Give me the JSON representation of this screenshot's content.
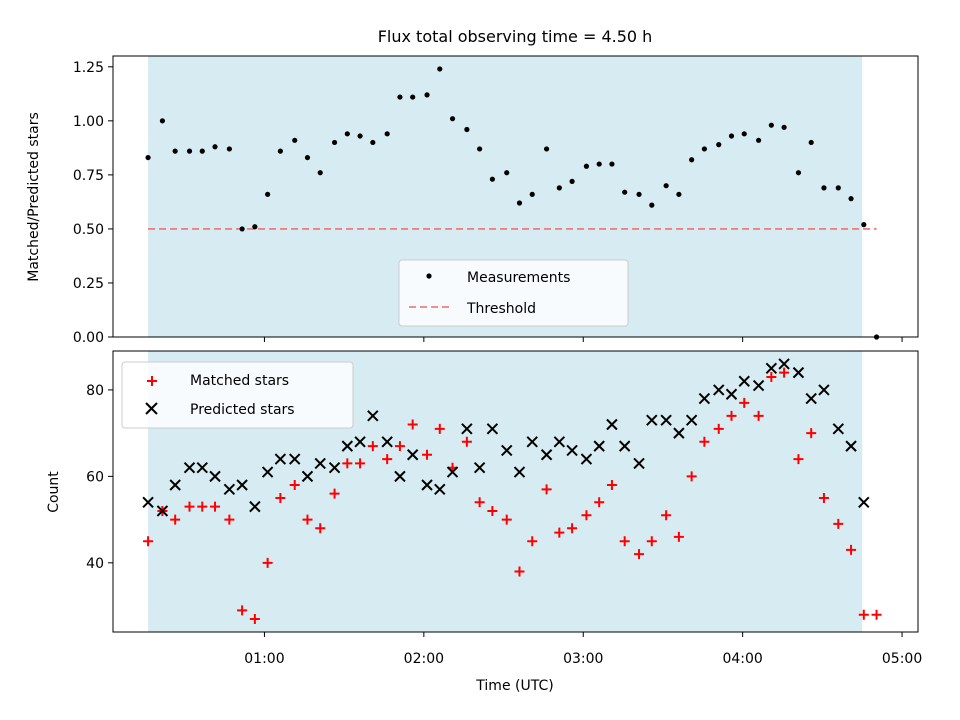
{
  "figure": {
    "title": "Flux total observing time = 4.50 h",
    "shade_color": "#add8e6",
    "x_ticks": [
      "01:00",
      "02:00",
      "03:00",
      "04:00",
      "05:00"
    ]
  },
  "chart_data": [
    {
      "type": "scatter",
      "panel": "top",
      "title": "Flux total observing time = 4.50 h",
      "xlabel": "",
      "ylabel": "Matched/Predicted stars",
      "x_unit": "hours UTC",
      "xlim": [
        0.05,
        5.1
      ],
      "ylim": [
        0.0,
        1.3
      ],
      "y_ticks": [
        "0.00",
        "0.25",
        "0.50",
        "0.75",
        "1.00",
        "1.25"
      ],
      "shaded_interval": [
        0.27,
        4.75
      ],
      "legend": {
        "position": "bottom-center"
      },
      "series": [
        {
          "name": "Measurements",
          "color": "#000000",
          "marker": "dot",
          "x": [
            0.27,
            0.36,
            0.44,
            0.53,
            0.61,
            0.69,
            0.78,
            0.86,
            0.94,
            1.02,
            1.1,
            1.19,
            1.27,
            1.35,
            1.44,
            1.52,
            1.6,
            1.68,
            1.77,
            1.85,
            1.93,
            2.02,
            2.1,
            2.18,
            2.27,
            2.35,
            2.43,
            2.52,
            2.6,
            2.68,
            2.77,
            2.85,
            2.93,
            3.02,
            3.1,
            3.18,
            3.26,
            3.35,
            3.43,
            3.52,
            3.6,
            3.68,
            3.76,
            3.85,
            3.93,
            4.01,
            4.1,
            4.18,
            4.26,
            4.35,
            4.43,
            4.51,
            4.6,
            4.68,
            4.76,
            4.84
          ],
          "y": [
            0.83,
            1.0,
            0.86,
            0.86,
            0.86,
            0.88,
            0.87,
            0.5,
            0.51,
            0.66,
            0.86,
            0.91,
            0.83,
            0.76,
            0.9,
            0.94,
            0.93,
            0.9,
            0.94,
            1.11,
            1.11,
            1.12,
            1.24,
            1.01,
            0.96,
            0.87,
            0.73,
            0.76,
            0.62,
            0.66,
            0.87,
            0.69,
            0.72,
            0.79,
            0.8,
            0.8,
            0.67,
            0.66,
            0.61,
            0.7,
            0.66,
            0.82,
            0.87,
            0.89,
            0.93,
            0.94,
            0.91,
            0.98,
            0.97,
            0.76,
            0.9,
            0.69,
            0.69,
            0.64,
            0.52,
            0.0
          ]
        },
        {
          "name": "Threshold",
          "color": "#f08080",
          "style": "dashed",
          "x": [
            0.27,
            4.84
          ],
          "y": [
            0.5,
            0.5
          ]
        }
      ]
    },
    {
      "type": "scatter",
      "panel": "bottom",
      "xlabel": "Time (UTC)",
      "ylabel": "Count",
      "x_unit": "hours UTC",
      "xlim": [
        0.05,
        5.1
      ],
      "ylim": [
        24,
        89
      ],
      "y_ticks": [
        "40",
        "60",
        "80"
      ],
      "shaded_interval": [
        0.27,
        4.75
      ],
      "legend": {
        "position": "top-left"
      },
      "series": [
        {
          "name": "Matched stars",
          "color": "#ff0000",
          "marker": "plus",
          "x": [
            0.27,
            0.36,
            0.44,
            0.53,
            0.61,
            0.69,
            0.78,
            0.86,
            0.94,
            1.02,
            1.1,
            1.19,
            1.27,
            1.35,
            1.44,
            1.52,
            1.6,
            1.68,
            1.77,
            1.85,
            1.93,
            2.02,
            2.1,
            2.18,
            2.27,
            2.35,
            2.43,
            2.52,
            2.6,
            2.68,
            2.77,
            2.85,
            2.93,
            3.02,
            3.1,
            3.18,
            3.26,
            3.35,
            3.43,
            3.52,
            3.6,
            3.68,
            3.76,
            3.85,
            3.93,
            4.01,
            4.1,
            4.18,
            4.26,
            4.35,
            4.43,
            4.51,
            4.6,
            4.68,
            4.76,
            4.84
          ],
          "y": [
            45,
            52,
            50,
            53,
            53,
            53,
            50,
            29,
            27,
            40,
            55,
            58,
            50,
            48,
            56,
            63,
            63,
            67,
            64,
            67,
            72,
            65,
            71,
            62,
            68,
            54,
            52,
            50,
            38,
            45,
            57,
            47,
            48,
            51,
            54,
            58,
            45,
            42,
            45,
            51,
            46,
            60,
            68,
            71,
            74,
            77,
            74,
            83,
            84,
            64,
            70,
            55,
            49,
            43,
            28,
            28
          ]
        },
        {
          "name": "Predicted stars",
          "color": "#000000",
          "marker": "cross",
          "x": [
            0.27,
            0.36,
            0.44,
            0.53,
            0.61,
            0.69,
            0.78,
            0.86,
            0.94,
            1.02,
            1.1,
            1.19,
            1.27,
            1.35,
            1.44,
            1.52,
            1.6,
            1.68,
            1.77,
            1.85,
            1.93,
            2.02,
            2.1,
            2.18,
            2.27,
            2.35,
            2.43,
            2.52,
            2.6,
            2.68,
            2.77,
            2.85,
            2.93,
            3.02,
            3.1,
            3.18,
            3.26,
            3.35,
            3.43,
            3.52,
            3.6,
            3.68,
            3.76,
            3.85,
            3.93,
            4.01,
            4.1,
            4.18,
            4.26,
            4.35,
            4.43,
            4.51,
            4.6,
            4.68,
            4.76
          ],
          "y": [
            54,
            52,
            58,
            62,
            62,
            60,
            57,
            58,
            53,
            61,
            64,
            64,
            60,
            63,
            62,
            67,
            68,
            74,
            68,
            60,
            65,
            58,
            57,
            61,
            71,
            62,
            71,
            66,
            61,
            68,
            65,
            68,
            66,
            64,
            67,
            72,
            67,
            63,
            73,
            73,
            70,
            73,
            78,
            80,
            79,
            82,
            81,
            85,
            86,
            84,
            78,
            80,
            71,
            67,
            54
          ]
        }
      ]
    }
  ]
}
